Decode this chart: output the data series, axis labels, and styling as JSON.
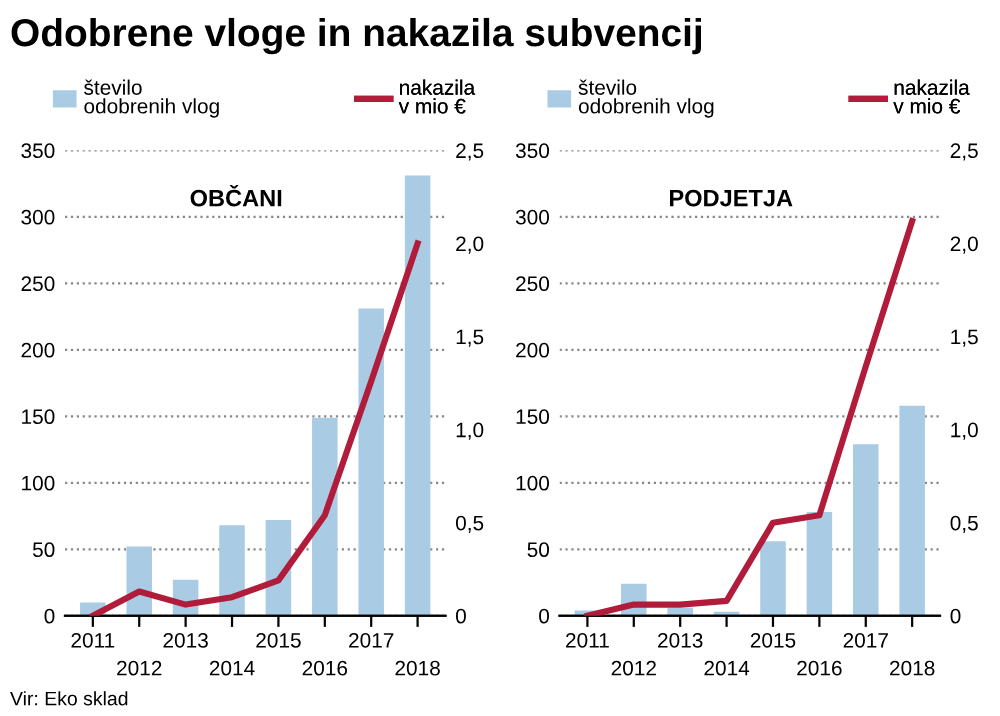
{
  "chart_data": [
    {
      "type": "bar",
      "title": "Odobrene vloge in nakazila subvencij",
      "subtitle": "OBČANI",
      "categories": [
        "2011",
        "2012",
        "2013",
        "2014",
        "2015",
        "2016",
        "2017",
        "2018"
      ],
      "series": [
        {
          "name": "število odobrenih vlog",
          "color": "#a9cbe3",
          "values": [
            10,
            52,
            27,
            68,
            72,
            149,
            231,
            331
          ]
        },
        {
          "name": "nakazila v mio €",
          "type": "line",
          "axis": "y2",
          "color": "#b01c3a",
          "values": [
            0,
            0.13,
            0.06,
            0.1,
            0.19,
            0.54,
            1.26,
            2.0
          ]
        }
      ],
      "ylim": [
        0,
        350
      ],
      "yticks": [
        0,
        50,
        100,
        150,
        200,
        250,
        300,
        350
      ],
      "y2lim": [
        0,
        2.5
      ],
      "y2ticks": [
        {
          "value": 0,
          "label": "0"
        },
        {
          "value": 0.5,
          "label": "0,5"
        },
        {
          "value": 1,
          "label": "1,0"
        },
        {
          "value": 1.5,
          "label": "1,5"
        },
        {
          "value": 2,
          "label": "2,0"
        },
        {
          "value": 2.5,
          "label": "2,5"
        }
      ],
      "grid": "y",
      "legend": "top",
      "annotations": [
        "Vir: Eko sklad"
      ]
    },
    {
      "type": "bar",
      "subtitle": "PODJETJA",
      "categories": [
        "2011",
        "2012",
        "2013",
        "2014",
        "2015",
        "2016",
        "2017",
        "2018"
      ],
      "series": [
        {
          "name": "število odobrenih vlog",
          "color": "#a9cbe3",
          "values": [
            4,
            24,
            6,
            3,
            56,
            78,
            129,
            158
          ]
        },
        {
          "name": "nakazila v mio €",
          "type": "line",
          "axis": "y2",
          "color": "#b01c3a",
          "values": [
            0,
            0.06,
            0.06,
            0.08,
            0.5,
            0.54,
            1.34,
            2.12
          ]
        }
      ],
      "ylim": [
        0,
        350
      ],
      "yticks": [
        0,
        50,
        100,
        150,
        200,
        250,
        300,
        350
      ],
      "y2lim": [
        0,
        2.5
      ],
      "y2ticks": [
        {
          "value": 0,
          "label": "0"
        },
        {
          "value": 0.5,
          "label": "0,5"
        },
        {
          "value": 1,
          "label": "1,0"
        },
        {
          "value": 1.5,
          "label": "1,5"
        },
        {
          "value": 2,
          "label": "2,0"
        },
        {
          "value": 2.5,
          "label": "2,5"
        }
      ],
      "grid": "y",
      "legend": "top"
    }
  ]
}
